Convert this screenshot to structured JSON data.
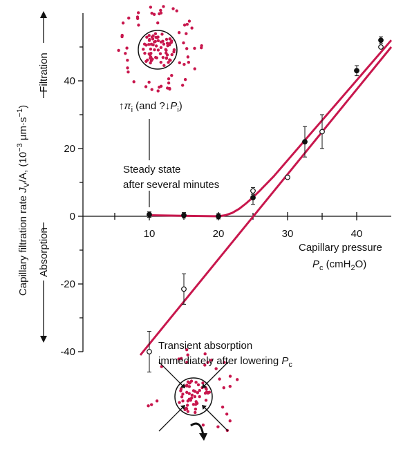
{
  "chart_data": {
    "type": "scatter",
    "y_label": [
      "Capillary filtration rate ",
      "J",
      "V",
      "/A, (10",
      "−3",
      " µm·s",
      "−1",
      ")"
    ],
    "x_label": [
      "Capillary pressure",
      "P",
      "c",
      " (cmH",
      "2",
      "O)"
    ],
    "filtration_label": "Filtration",
    "absorption_label": "Absorption",
    "note_top": [
      "↑",
      "π",
      "i",
      " (and ?↓",
      "P",
      "i",
      ")"
    ],
    "note_steady": [
      "Steady state",
      "after several minutes"
    ],
    "note_transient": [
      "Transient absorption",
      "immediately after lowering ",
      "P",
      "c"
    ],
    "xlim": [
      0,
      45
    ],
    "ylim": [
      -40,
      60
    ],
    "xticks": [
      10,
      20,
      30,
      40
    ],
    "xticks_minor": [
      5,
      15,
      25,
      35
    ],
    "yticks": [
      -40,
      -20,
      0,
      20,
      40
    ],
    "yticks_minor": [
      -30,
      -10,
      10,
      30,
      50
    ],
    "series": [
      {
        "marker": "filled",
        "color": "#111111",
        "x": [
          10,
          15,
          20,
          25,
          32.5,
          40,
          43.5
        ],
        "values": [
          0.5,
          0.3,
          0,
          5.5,
          22,
          43,
          52
        ],
        "errors": [
          0.8,
          0.8,
          0.8,
          2,
          4.5,
          1.5,
          1
        ]
      },
      {
        "marker": "open",
        "color": "#111111",
        "x": [
          10,
          15,
          25,
          30,
          35,
          43.5
        ],
        "values": [
          -40,
          -21.5,
          7.5,
          11.5,
          25,
          50
        ],
        "errors": [
          6,
          4.5,
          1,
          null,
          5,
          null
        ]
      }
    ],
    "lines": [
      {
        "color": "#c8174d",
        "x": [
          10,
          20,
          21,
          22,
          23,
          24,
          25,
          26,
          28,
          45
        ],
        "values": [
          0.3,
          0,
          0.3,
          1,
          2.2,
          3.8,
          5.6,
          7.6,
          11.8,
          52
        ]
      },
      {
        "color": "#c8174d",
        "x": [
          8.7,
          45
        ],
        "values": [
          -41,
          50
        ]
      }
    ]
  }
}
